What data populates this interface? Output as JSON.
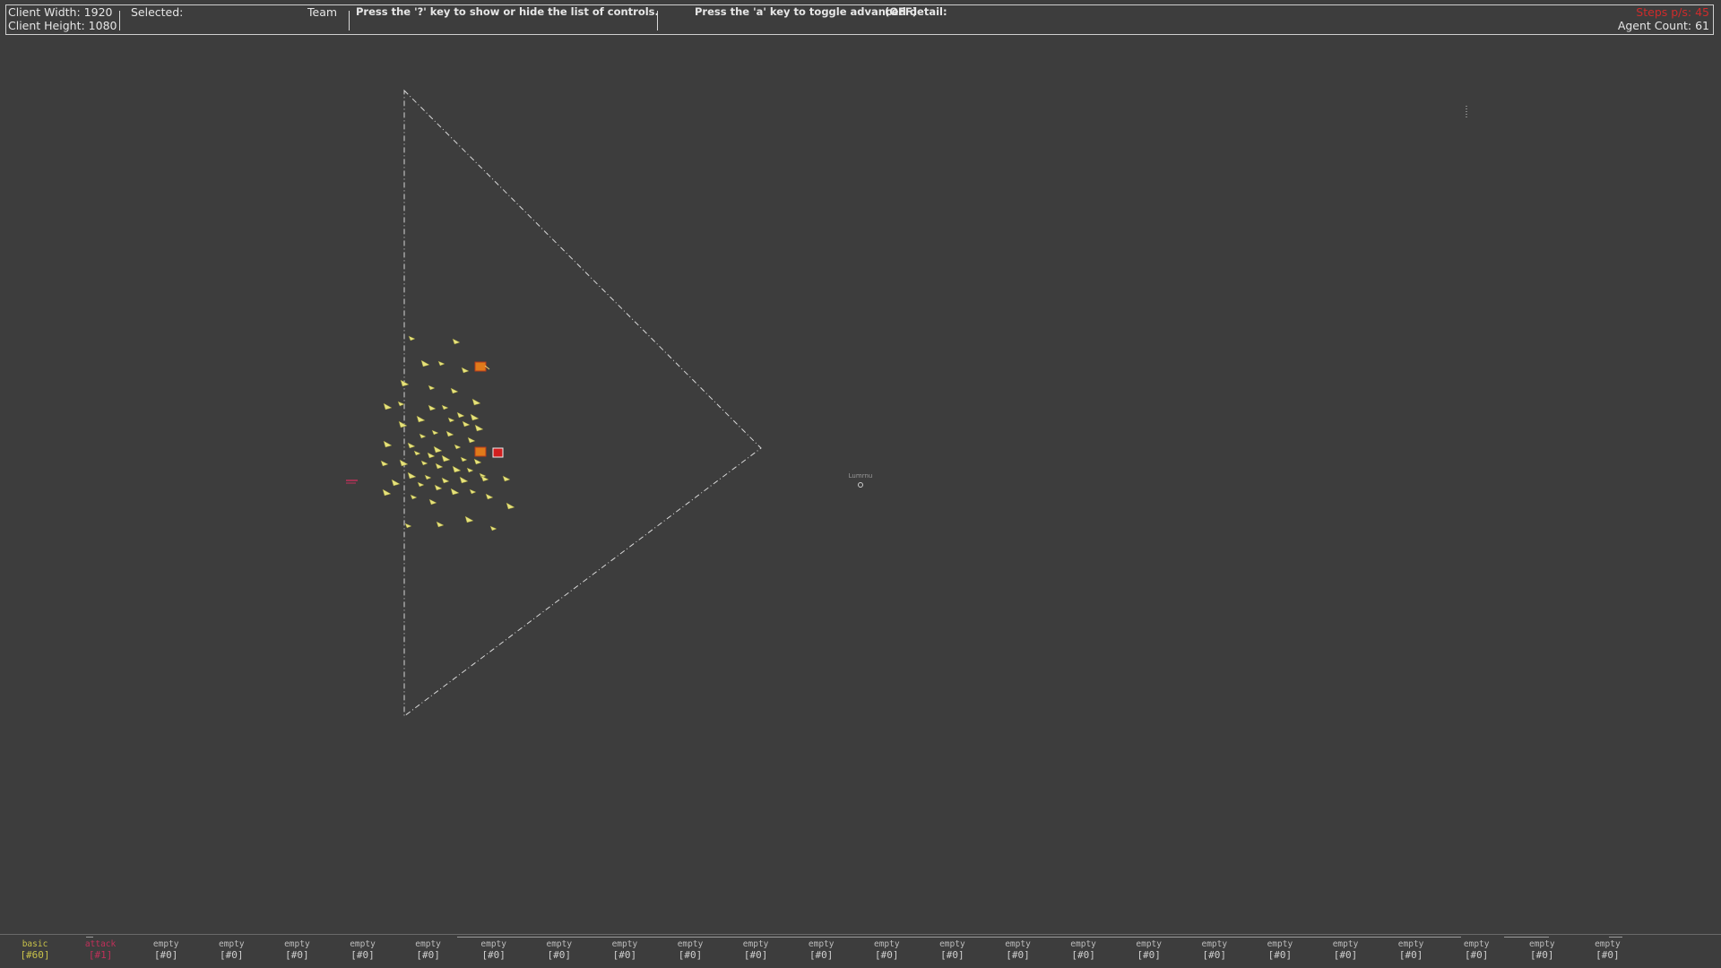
{
  "hud": {
    "client_width": "Client Width: 1920",
    "client_height": "Client Height: 1080",
    "selected_label": "Selected:",
    "team_label": "Team",
    "controls_hint": "Press the '?' key to show or hide the list of controls.",
    "detail_hint": "Press the 'a' key to toggle advanced detail:",
    "detail_state": "(OFF)",
    "steps_per_second": "Steps p/s: 45",
    "agent_count": "Agent Count: 61"
  },
  "field": {
    "waypoint_label": "Lumrnu"
  },
  "team_bar": [
    {
      "name": "basic",
      "count": "[#60]"
    },
    {
      "name": "attack",
      "count": "[#1]"
    },
    {
      "name": "empty",
      "count": "[#0]"
    },
    {
      "name": "empty",
      "count": "[#0]"
    },
    {
      "name": "empty",
      "count": "[#0]"
    },
    {
      "name": "empty",
      "count": "[#0]"
    },
    {
      "name": "empty",
      "count": "[#0]"
    },
    {
      "name": "empty",
      "count": "[#0]"
    },
    {
      "name": "empty",
      "count": "[#0]"
    },
    {
      "name": "empty",
      "count": "[#0]"
    },
    {
      "name": "empty",
      "count": "[#0]"
    },
    {
      "name": "empty",
      "count": "[#0]"
    },
    {
      "name": "empty",
      "count": "[#0]"
    },
    {
      "name": "empty",
      "count": "[#0]"
    },
    {
      "name": "empty",
      "count": "[#0]"
    },
    {
      "name": "empty",
      "count": "[#0]"
    },
    {
      "name": "empty",
      "count": "[#0]"
    },
    {
      "name": "empty",
      "count": "[#0]"
    },
    {
      "name": "empty",
      "count": "[#0]"
    },
    {
      "name": "empty",
      "count": "[#0]"
    },
    {
      "name": "empty",
      "count": "[#0]"
    },
    {
      "name": "empty",
      "count": "[#0]"
    },
    {
      "name": "empty",
      "count": "[#0]"
    },
    {
      "name": "empty",
      "count": "[#0]"
    },
    {
      "name": "empty",
      "count": "[#0]"
    }
  ],
  "colors": {
    "background": "#3d3d3d",
    "agent_basic": "#e6e27a",
    "agent_attack": "#c2305a",
    "objective_orange": "#e07a1a",
    "objective_red": "#d01f1f",
    "steps_text": "#cf2b2b"
  }
}
